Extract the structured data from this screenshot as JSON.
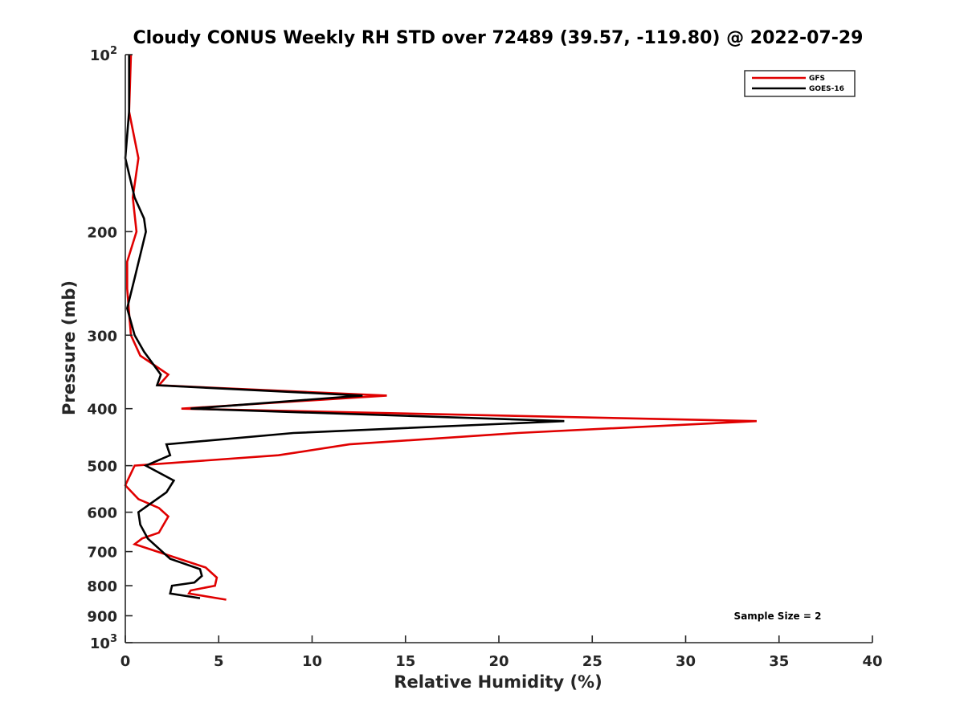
{
  "chart_data": {
    "type": "line",
    "title": "Cloudy CONUS Weekly RH STD over 72489 (39.57, -119.80) @ 2022-07-29",
    "xlabel": "Relative Humidity (%)",
    "ylabel": "Pressure (mb)",
    "xlim": [
      0,
      40
    ],
    "ylim": [
      100,
      1000
    ],
    "y_scale": "log",
    "y_reversed": true,
    "xticks": [
      "0",
      "5",
      "10",
      "15",
      "20",
      "25",
      "30",
      "35",
      "40"
    ],
    "yticks": [
      {
        "value": 100,
        "base": "10",
        "exp": "2"
      },
      {
        "value": 200,
        "label": "200"
      },
      {
        "value": 300,
        "label": "300"
      },
      {
        "value": 400,
        "label": "400"
      },
      {
        "value": 500,
        "label": "500"
      },
      {
        "value": 600,
        "label": "600"
      },
      {
        "value": 700,
        "label": "700"
      },
      {
        "value": 800,
        "label": "800"
      },
      {
        "value": 900,
        "label": "900"
      },
      {
        "value": 1000,
        "base": "10",
        "exp": "3"
      }
    ],
    "legend_position": "top-right",
    "annotation": "Sample Size = 2",
    "series": [
      {
        "name": "GFS",
        "color": "#e00000",
        "points": [
          [
            0.3,
            100
          ],
          [
            0.2,
            125
          ],
          [
            0.7,
            150
          ],
          [
            0.4,
            175
          ],
          [
            0.6,
            200
          ],
          [
            0.1,
            225
          ],
          [
            0.1,
            250
          ],
          [
            0.2,
            275
          ],
          [
            0.3,
            300
          ],
          [
            0.8,
            325
          ],
          [
            2.3,
            350
          ],
          [
            1.8,
            365
          ],
          [
            14.0,
            380
          ],
          [
            3.0,
            400
          ],
          [
            33.8,
            420
          ],
          [
            21.0,
            440
          ],
          [
            12.0,
            460
          ],
          [
            8.2,
            480
          ],
          [
            0.5,
            500
          ],
          [
            0.0,
            540
          ],
          [
            0.7,
            570
          ],
          [
            1.8,
            590
          ],
          [
            2.3,
            610
          ],
          [
            1.8,
            650
          ],
          [
            0.9,
            665
          ],
          [
            0.5,
            680
          ],
          [
            4.3,
            745
          ],
          [
            4.9,
            775
          ],
          [
            4.8,
            800
          ],
          [
            3.5,
            815
          ],
          [
            3.4,
            825
          ],
          [
            5.4,
            845
          ]
        ]
      },
      {
        "name": "GOES-16",
        "color": "#000000",
        "points": [
          [
            0.2,
            100
          ],
          [
            0.2,
            125
          ],
          [
            0.0,
            150
          ],
          [
            0.5,
            175
          ],
          [
            1.0,
            190
          ],
          [
            1.1,
            200
          ],
          [
            0.5,
            240
          ],
          [
            0.1,
            270
          ],
          [
            0.5,
            300
          ],
          [
            1.0,
            320
          ],
          [
            1.9,
            350
          ],
          [
            1.7,
            365
          ],
          [
            12.7,
            380
          ],
          [
            3.5,
            400
          ],
          [
            23.5,
            420
          ],
          [
            9.0,
            440
          ],
          [
            2.2,
            460
          ],
          [
            2.4,
            480
          ],
          [
            1.1,
            500
          ],
          [
            2.6,
            530
          ],
          [
            2.2,
            555
          ],
          [
            0.7,
            600
          ],
          [
            0.8,
            630
          ],
          [
            1.2,
            665
          ],
          [
            2.4,
            720
          ],
          [
            4.0,
            750
          ],
          [
            4.1,
            770
          ],
          [
            3.7,
            790
          ],
          [
            2.5,
            800
          ],
          [
            2.4,
            825
          ],
          [
            4.0,
            840
          ]
        ]
      }
    ]
  }
}
